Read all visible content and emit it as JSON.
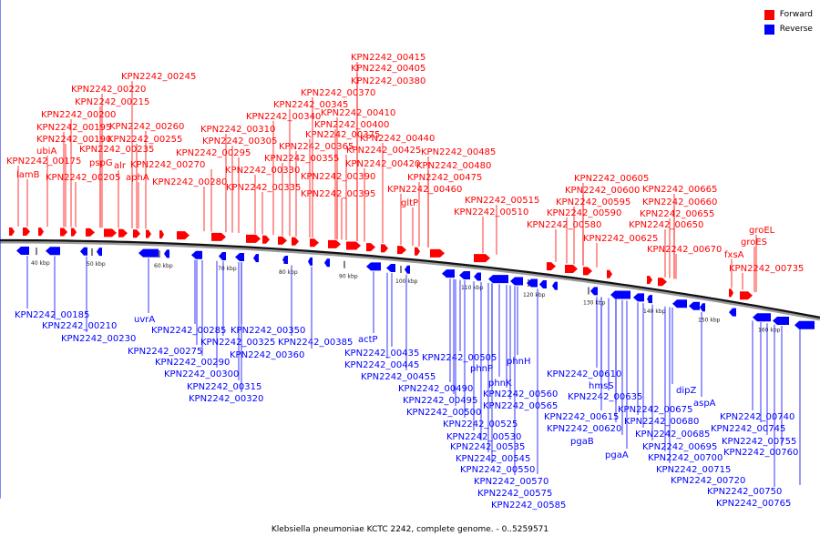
{
  "legend": {
    "forward": {
      "label": "Forward",
      "color": "#ff0000"
    },
    "reverse": {
      "label": "Reverse",
      "color": "#0000ff"
    }
  },
  "caption": "Klebsiella pneumoniae KCTC 2242, complete genome. - 0..5259571",
  "ticks": [
    "40 kbp",
    "50 kbp",
    "60 kbp",
    "70 kbp",
    "80 kbp",
    "90 kbp",
    "100 kbp",
    "110 kbp",
    "120 kbp",
    "130 kbp",
    "140 kbp",
    "150 kbp",
    "160 kbp"
  ],
  "forward_labels": [
    "KPN2242_00415",
    "KPN2242_00405",
    "KPN2242_00380",
    "KPN2242_00245",
    "KPN2242_00370",
    "KPN2242_00220",
    "KPN2242_00345",
    "KPN2242_00215",
    "KPN2242_00410",
    "KPN2242_00340",
    "KPN2242_00200",
    "KPN2242_00400",
    "KPN2242_00260",
    "KPN2242_00310",
    "KPN2242_00195",
    "KPN2242_00375",
    "KPN2242_00255",
    "KPN2242_00440",
    "KPN2242_00190",
    "KPN2242_00305",
    "KPN2242_00365",
    "KPN2242_00235",
    "KPN2242_00425",
    "KPN2242_00485",
    "ubiA",
    "KPN2242_00295",
    "KPN2242_00355",
    "KPN2242_00175",
    "pspG",
    "alr",
    "KPN2242_00270",
    "KPN2242_00420",
    "KPN2242_00480",
    "lamB",
    "KPN2242_00330",
    "KPN2242_00390",
    "KPN2242_00475",
    "KPN2242_00205",
    "aphA",
    "KPN2242_00280",
    "KPN2242_00335",
    "KPN2242_00460",
    "KPN2242_00395",
    "gltP",
    "KPN2242_00515",
    "KPN2242_00510",
    "KPN2242_00605",
    "KPN2242_00600",
    "KPN2242_00595",
    "KPN2242_00590",
    "KPN2242_00580",
    "KPN2242_00625",
    "KPN2242_00665",
    "KPN2242_00660",
    "KPN2242_00655",
    "KPN2242_00650",
    "KPN2242_00670",
    "groEL",
    "groES",
    "fxsA",
    "KPN2242_00735"
  ],
  "reverse_labels": [
    "KPN2242_00185",
    "KPN2242_00210",
    "KPN2242_00230",
    "uvrA",
    "KPN2242_00285",
    "KPN2242_00350",
    "KPN2242_00275",
    "KPN2242_00325",
    "KPN2242_00385",
    "actP",
    "KPN2242_00290",
    "KPN2242_00360",
    "KPN2242_00300",
    "KPN2242_00435",
    "KPN2242_00445",
    "KPN2242_00315",
    "KPN2242_00455",
    "KPN2242_00320",
    "KPN2242_00505",
    "phnP",
    "phnH",
    "KPN2242_00490",
    "phnK",
    "KPN2242_00610",
    "KPN2242_00495",
    "KPN2242_00560",
    "hmsS",
    "KPN2242_00635",
    "KPN2242_00500",
    "KPN2242_00565",
    "dipZ",
    "KPN2242_00675",
    "KPN2242_00525",
    "KPN2242_00615",
    "aspA",
    "KPN2242_00680",
    "KPN2242_00530",
    "KPN2242_00620",
    "KPN2242_00740",
    "KPN2242_00535",
    "pgaB",
    "KPN2242_00685",
    "KPN2242_00745",
    "KPN2242_00545",
    "pgaA",
    "KPN2242_00695",
    "KPN2242_00755",
    "KPN2242_00550",
    "KPN2242_00700",
    "KPN2242_00760",
    "KPN2242_00570",
    "KPN2242_00715",
    "KPN2242_00575",
    "KPN2242_00720",
    "KPN2242_00750",
    "KPN2242_00585",
    "KPN2242_00765"
  ]
}
